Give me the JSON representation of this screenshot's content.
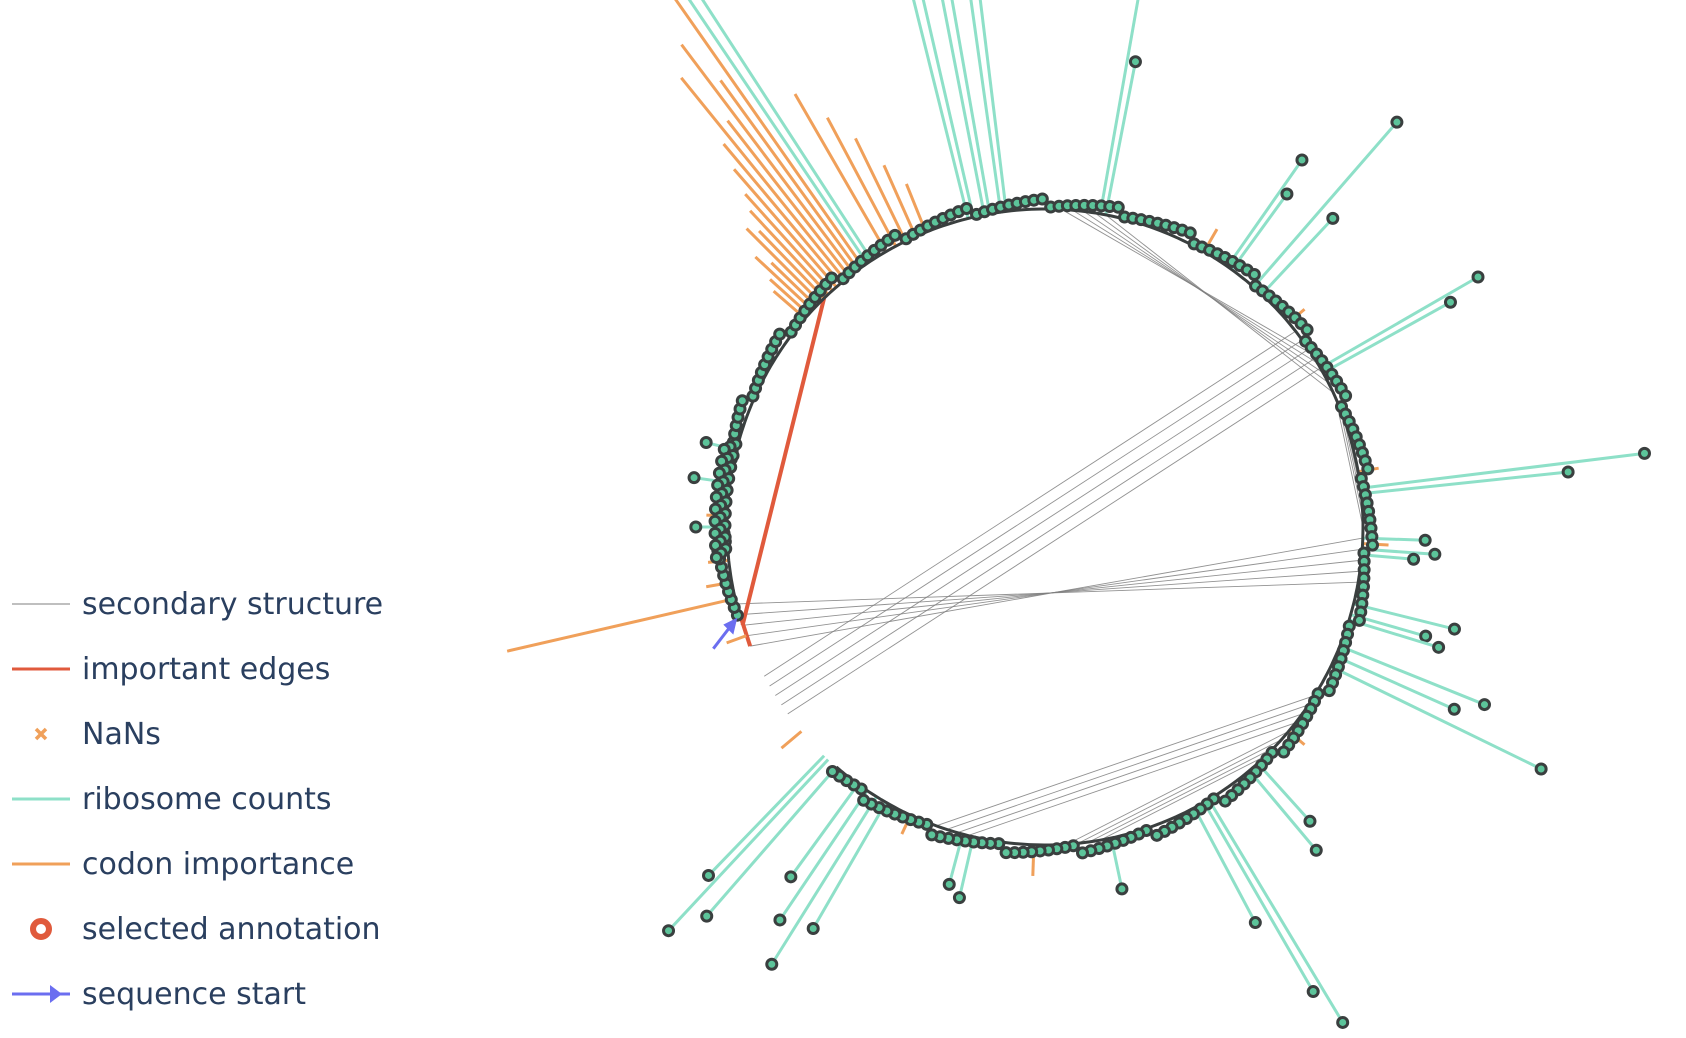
{
  "chart_data": {
    "type": "circular-arc-diagram",
    "title": "",
    "xlabel": "",
    "ylabel": "",
    "grid": false,
    "legend_position": "bottom-left",
    "colors": {
      "secondary_structure": "#7f7f7f",
      "important_edges": "#e05a3c",
      "nans": "#f0a05a",
      "ribosome_counts": "#8ee0c8",
      "codon_importance": "#f0a05a",
      "selected_annotation": "#e05a3c",
      "sequence_start": "#6b6ef0",
      "node_fill": "#5cc49a",
      "node_stroke": "#3a3f3f",
      "backbone": "#3a3f3f"
    },
    "legend": [
      {
        "key": "secondary_structure",
        "label": "secondary structure",
        "symbol": "thin-line"
      },
      {
        "key": "important_edges",
        "label": "important edges",
        "symbol": "line"
      },
      {
        "key": "nans",
        "label": "NaNs",
        "symbol": "x-marker"
      },
      {
        "key": "ribosome_counts",
        "label": "ribosome counts",
        "symbol": "line"
      },
      {
        "key": "codon_importance",
        "label": "codon importance",
        "symbol": "line"
      },
      {
        "key": "selected_annotation",
        "label": "selected annotation",
        "symbol": "ring-marker"
      },
      {
        "key": "sequence_start",
        "label": "sequence start",
        "symbol": "arrow"
      }
    ],
    "sequence_start_angle_deg": 196,
    "gap_end_angle_deg": 163,
    "ribosome_counts": [
      {
        "angle": 123,
        "count": 1.05
      },
      {
        "angle": 124,
        "count": 0.95
      },
      {
        "angle": 103,
        "count": 0.62
      },
      {
        "angle": 104,
        "count": 0.55
      },
      {
        "angle": 101,
        "count": 0.62
      },
      {
        "angle": 100,
        "count": 0.55
      },
      {
        "angle": 98,
        "count": 0.62
      },
      {
        "angle": 97,
        "count": 0.48
      },
      {
        "angle": 80,
        "count": 0.5
      },
      {
        "angle": 79,
        "count": 0.3
      },
      {
        "angle": 55,
        "count": 0.25
      },
      {
        "angle": 54,
        "count": 0.18
      },
      {
        "angle": 49,
        "count": 0.42
      },
      {
        "angle": 47,
        "count": 0.2
      },
      {
        "angle": 30,
        "count": 0.35
      },
      {
        "angle": 29,
        "count": 0.28
      },
      {
        "angle": 7,
        "count": 0.55
      },
      {
        "angle": 6,
        "count": 0.4
      },
      {
        "angle": -2,
        "count": 0.12
      },
      {
        "angle": -4,
        "count": 0.14
      },
      {
        "angle": -5,
        "count": 0.1
      },
      {
        "angle": -14,
        "count": 0.2
      },
      {
        "angle": -16,
        "count": 0.15
      },
      {
        "angle": -17,
        "count": 0.18
      },
      {
        "angle": -22,
        "count": 0.3
      },
      {
        "angle": -24,
        "count": 0.25
      },
      {
        "angle": -26,
        "count": 0.45
      },
      {
        "angle": -48,
        "count": 0.15
      },
      {
        "angle": -50,
        "count": 0.2
      },
      {
        "angle": -59,
        "count": 0.5
      },
      {
        "angle": -60,
        "count": 0.42
      },
      {
        "angle": -62,
        "count": 0.25
      },
      {
        "angle": -120,
        "count": 0.28
      },
      {
        "angle": -122,
        "count": 0.38
      },
      {
        "angle": -124,
        "count": 0.3
      },
      {
        "angle": -126,
        "count": 0.22
      },
      {
        "angle": -103,
        "count": 0.12
      },
      {
        "angle": -105,
        "count": 0.1
      },
      {
        "angle": -78,
        "count": 0.1
      },
      {
        "angle": -133,
        "count": 0.45
      },
      {
        "angle": -131,
        "count": 0.38
      },
      {
        "angle": -134,
        "count": 0.32
      },
      {
        "angle": 180,
        "count": 0.06
      },
      {
        "angle": 172,
        "count": 0.07
      },
      {
        "angle": 166,
        "count": 0.06
      }
    ],
    "codon_importance": [
      {
        "angle": 125,
        "value": 0.7
      },
      {
        "angle": 126,
        "value": 0.45
      },
      {
        "angle": 127,
        "value": 0.55
      },
      {
        "angle": 128,
        "value": 0.38
      },
      {
        "angle": 129,
        "value": 0.5
      },
      {
        "angle": 130,
        "value": 0.35
      },
      {
        "angle": 131,
        "value": 0.3
      },
      {
        "angle": 132,
        "value": 0.25
      },
      {
        "angle": 133,
        "value": 0.22
      },
      {
        "angle": 134,
        "value": 0.18
      },
      {
        "angle": 135,
        "value": 0.2
      },
      {
        "angle": 136,
        "value": 0.12
      },
      {
        "angle": 137,
        "value": 0.15
      },
      {
        "angle": 138,
        "value": 0.1
      },
      {
        "angle": 139,
        "value": 0.08
      },
      {
        "angle": 120,
        "value": 0.35
      },
      {
        "angle": 118,
        "value": 0.28
      },
      {
        "angle": 116,
        "value": 0.22
      },
      {
        "angle": 114,
        "value": 0.15
      },
      {
        "angle": 112,
        "value": 0.1
      },
      {
        "angle": 193,
        "value": 0.45
      },
      {
        "angle": 190,
        "value": 0.05
      },
      {
        "angle": 186,
        "value": 0.04
      },
      {
        "angle": 178,
        "value": 0.04
      },
      {
        "angle": 60,
        "value": 0.05
      },
      {
        "angle": 40,
        "value": 0.04
      },
      {
        "angle": 10,
        "value": 0.04
      },
      {
        "angle": -3,
        "value": 0.05
      },
      {
        "angle": -40,
        "value": 0.04
      },
      {
        "angle": -92,
        "value": 0.06
      },
      {
        "angle": -115,
        "value": 0.04
      },
      {
        "angle": -140,
        "value": 0.05
      },
      {
        "angle": -160,
        "value": 0.04
      }
    ],
    "secondary_structure_pairs": [
      {
        "from": 87,
        "to": 33
      },
      {
        "from": 85,
        "to": 31
      },
      {
        "from": 83,
        "to": 29
      },
      {
        "from": 81,
        "to": 27
      },
      {
        "from": 79,
        "to": 25
      },
      {
        "from": 38,
        "to": -152
      },
      {
        "from": 36,
        "to": -150
      },
      {
        "from": 34,
        "to": -148
      },
      {
        "from": 32,
        "to": -146
      },
      {
        "from": 30,
        "to": -144
      },
      {
        "from": 24,
        "to": 0
      },
      {
        "from": 22,
        "to": 2
      },
      {
        "from": 20,
        "to": 4
      },
      {
        "from": 18,
        "to": 6
      },
      {
        "from": -2,
        "to": -158
      },
      {
        "from": -4,
        "to": -160
      },
      {
        "from": -6,
        "to": -162
      },
      {
        "from": -8,
        "to": -164
      },
      {
        "from": -10,
        "to": -166
      },
      {
        "from": -32,
        "to": -110
      },
      {
        "from": -34,
        "to": -108
      },
      {
        "from": -36,
        "to": -106
      },
      {
        "from": -38,
        "to": -104
      },
      {
        "from": -40,
        "to": -86
      },
      {
        "from": -42,
        "to": -84
      },
      {
        "from": -44,
        "to": -82
      },
      {
        "from": -46,
        "to": -80
      },
      {
        "from": 192,
        "to": -160
      }
    ],
    "important_edges": [
      {
        "from": 198,
        "to": 134
      },
      {
        "from": 194,
        "to": -158
      }
    ],
    "selected_annotation_angle": 124
  }
}
